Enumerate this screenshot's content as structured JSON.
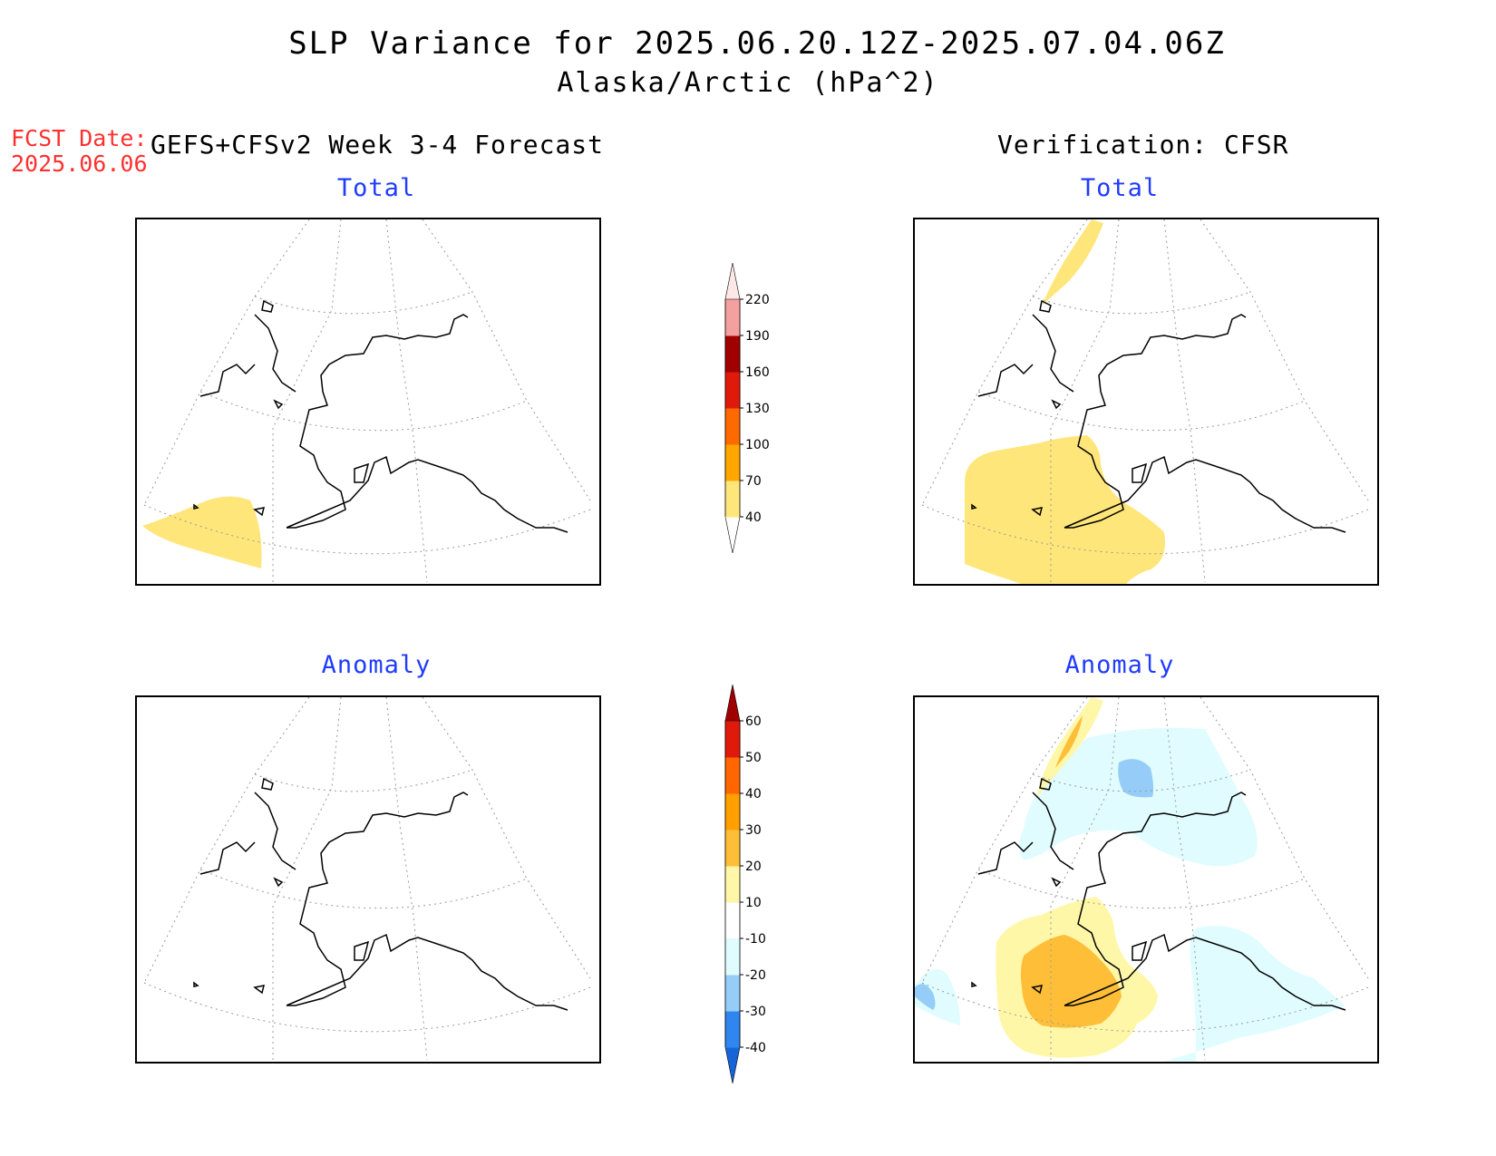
{
  "header": {
    "title": "SLP Variance for 2025.06.20.12Z-2025.07.04.06Z",
    "subtitle": "Alaska/Arctic (hPa^2)",
    "fcst_date_label": "FCST Date:",
    "fcst_date_value": "2025.06.06",
    "left_heading": "GEFS+CFSv2 Week 3-4 Forecast",
    "right_heading": "Verification: CFSR"
  },
  "panels": {
    "fc_total": {
      "title": "Total"
    },
    "vf_total": {
      "title": "Total"
    },
    "fc_anom": {
      "title": "Anomaly"
    },
    "vf_anom": {
      "title": "Anomaly"
    }
  },
  "colorbar_total": {
    "labels": [
      "40",
      "70",
      "100",
      "130",
      "160",
      "190",
      "220"
    ],
    "colors": [
      "#ffffff",
      "#ffe67a",
      "#ffa600",
      "#ff6a00",
      "#e01a0a",
      "#a00000",
      "#f4a0a0",
      "#fde8e8"
    ]
  },
  "colorbar_anomaly": {
    "labels": [
      "-40",
      "-30",
      "-20",
      "-10",
      "10",
      "20",
      "30",
      "40",
      "50",
      "60"
    ],
    "colors": [
      "#1565d8",
      "#2f86ee",
      "#95cdf8",
      "#e0fcff",
      "#ffffff",
      "#fff7a8",
      "#ffbe38",
      "#ffa000",
      "#ff6600",
      "#e01a0a",
      "#a00000"
    ]
  },
  "fill_colors": {
    "light_yellow": "#fff7a8",
    "yellow": "#ffe67a",
    "orange": "#ffbe38",
    "light_cyan": "#e0fcff",
    "light_blue": "#95cdf8",
    "land_outline": "#000000",
    "graticule": "#999999"
  }
}
